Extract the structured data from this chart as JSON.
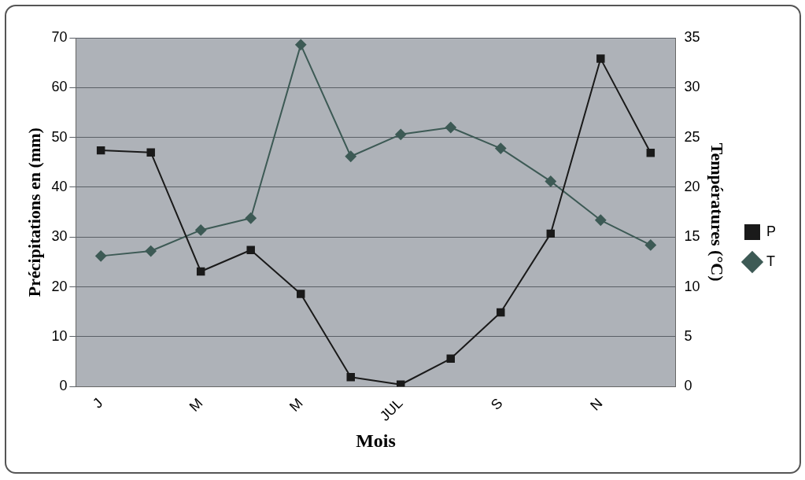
{
  "chart_data": {
    "type": "line",
    "xlabel": "Mois",
    "ylabel": "Précipitations en (mm)",
    "y2label": "Températures (°C)",
    "categories": [
      "J",
      null,
      "M",
      null,
      "M",
      null,
      "JUL",
      null,
      "S",
      null,
      "N",
      null
    ],
    "series": [
      {
        "name": "P",
        "color": "#1a1a1a",
        "marker": "square",
        "values": [
          47.4,
          47.0,
          23.1,
          27.4,
          18.6,
          1.9,
          0.4,
          5.6,
          14.9,
          30.7,
          65.8,
          46.9
        ]
      },
      {
        "name": "T",
        "color": "#3d5a55",
        "marker": "diamond",
        "axis": "y2",
        "values": [
          13.1,
          13.6,
          15.7,
          16.9,
          34.3,
          23.1,
          25.3,
          26.0,
          23.9,
          20.6,
          16.7,
          14.2
        ]
      }
    ],
    "ylim": [
      0,
      70
    ],
    "yticks": [
      0,
      10,
      20,
      30,
      40,
      50,
      60,
      70
    ],
    "y2lim": [
      0,
      35
    ],
    "y2ticks": [
      0,
      5,
      10,
      15,
      20,
      25,
      30,
      35
    ],
    "grid": "y",
    "legend": "right",
    "line_style": "solid"
  }
}
